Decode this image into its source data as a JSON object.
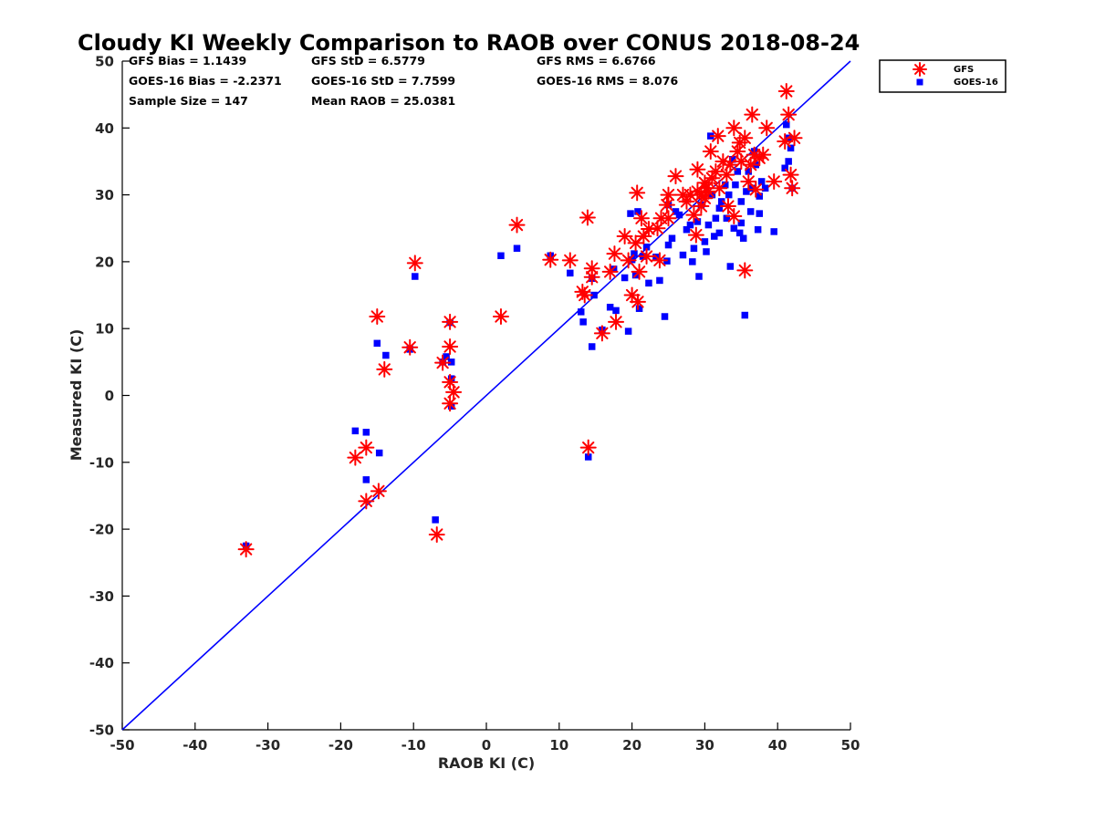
{
  "chart_data": {
    "type": "scatter",
    "title": "Cloudy KI Weekly Comparison to RAOB over CONUS 2018-08-24",
    "xlabel": "RAOB KI (C)",
    "ylabel": "Measured KI (C)",
    "xlim": [
      -50,
      50
    ],
    "ylim": [
      -50,
      50
    ],
    "xticks": [
      "-50",
      "-40",
      "-30",
      "-20",
      "-10",
      "0",
      "10",
      "20",
      "30",
      "40",
      "50"
    ],
    "yticks": [
      "-50",
      "-40",
      "-30",
      "-20",
      "-10",
      "0",
      "10",
      "20",
      "30",
      "40",
      "50"
    ],
    "grid": false,
    "legend_position": "outside top-right",
    "reference_line": {
      "from": [
        -50,
        -50
      ],
      "to": [
        50,
        50
      ],
      "color": "#0000ff"
    },
    "stats": [
      "GFS Bias = 1.1439",
      "GFS StD = 6.5779",
      "GFS RMS = 6.6766",
      "GOES-16 Bias = -2.2371",
      "GOES-16 StD = 7.7599",
      "GOES-16 RMS = 8.076",
      "Sample Size = 147",
      "Mean RAOB = 25.0381"
    ],
    "series": [
      {
        "name": "GFS",
        "marker": "asterisk",
        "color": "#ff0000",
        "points": [
          [
            -33,
            -23
          ],
          [
            -18,
            -9.3
          ],
          [
            -16.5,
            -7.8
          ],
          [
            -16.5,
            -15.8
          ],
          [
            -14.8,
            -14.3
          ],
          [
            -15,
            11.8
          ],
          [
            -14,
            3.9
          ],
          [
            -10.5,
            7.2
          ],
          [
            -9.8,
            19.8
          ],
          [
            -6.8,
            -20.8
          ],
          [
            -6,
            4.9
          ],
          [
            -5,
            11
          ],
          [
            -5,
            7.3
          ],
          [
            -5,
            2
          ],
          [
            -5,
            -1.2
          ],
          [
            -4.5,
            0.5
          ],
          [
            2,
            11.8
          ],
          [
            4.2,
            25.5
          ],
          [
            8.8,
            20.3
          ],
          [
            11.5,
            20.2
          ],
          [
            13.2,
            15.5
          ],
          [
            13.5,
            15
          ],
          [
            13.9,
            26.6
          ],
          [
            14,
            -7.8
          ],
          [
            14.5,
            19
          ],
          [
            14.5,
            17.7
          ],
          [
            15.9,
            9.3
          ],
          [
            17,
            18.5
          ],
          [
            17.6,
            21.2
          ],
          [
            17.8,
            11
          ],
          [
            19,
            23.8
          ],
          [
            19.5,
            20.2
          ],
          [
            20,
            15
          ],
          [
            20.5,
            22.8
          ],
          [
            20.7,
            30.3
          ],
          [
            20.8,
            14
          ],
          [
            21,
            18.5
          ],
          [
            21.3,
            26.5
          ],
          [
            21.6,
            23.8
          ],
          [
            22,
            20.8
          ],
          [
            22.3,
            24.9
          ],
          [
            23.5,
            25
          ],
          [
            23.8,
            20.2
          ],
          [
            24,
            26.5
          ],
          [
            24.8,
            28.5
          ],
          [
            25,
            30
          ],
          [
            25,
            26.5
          ],
          [
            26,
            32.8
          ],
          [
            27,
            30
          ],
          [
            27.5,
            29
          ],
          [
            28,
            30
          ],
          [
            28.5,
            27
          ],
          [
            28.8,
            24
          ],
          [
            29,
            33.8
          ],
          [
            29,
            30.5
          ],
          [
            29.5,
            30
          ],
          [
            29.5,
            28.3
          ],
          [
            30,
            31.8
          ],
          [
            30,
            29.5
          ],
          [
            30.2,
            31
          ],
          [
            30.5,
            30.5
          ],
          [
            30.8,
            36.5
          ],
          [
            31,
            32.5
          ],
          [
            31.5,
            33.5
          ],
          [
            31.8,
            38.8
          ],
          [
            32,
            31
          ],
          [
            32.5,
            35
          ],
          [
            33,
            33
          ],
          [
            33.2,
            28.3
          ],
          [
            33.5,
            34.5
          ],
          [
            34,
            40
          ],
          [
            34,
            26.8
          ],
          [
            34.5,
            36.5
          ],
          [
            34.8,
            37.8
          ],
          [
            35,
            35
          ],
          [
            35.5,
            38.5
          ],
          [
            35.5,
            18.7
          ],
          [
            36,
            32
          ],
          [
            36.3,
            34.5
          ],
          [
            36.5,
            42
          ],
          [
            36.8,
            36
          ],
          [
            37,
            30.8
          ],
          [
            37.5,
            35.5
          ],
          [
            38,
            36
          ],
          [
            38.5,
            40
          ],
          [
            39.5,
            32
          ],
          [
            41,
            38
          ],
          [
            41.2,
            45.5
          ],
          [
            41.5,
            42
          ],
          [
            41.8,
            33
          ],
          [
            42,
            31
          ],
          [
            42.3,
            38.5
          ]
        ]
      },
      {
        "name": "GOES-16",
        "marker": "square",
        "color": "#0000ff",
        "points": [
          [
            -33,
            -22.5
          ],
          [
            -18,
            -5.3
          ],
          [
            -16.5,
            -5.5
          ],
          [
            -16.5,
            -12.6
          ],
          [
            -15,
            7.8
          ],
          [
            -14.7,
            -8.6
          ],
          [
            -13.8,
            6
          ],
          [
            -10.5,
            6.9
          ],
          [
            -9.8,
            17.8
          ],
          [
            -7,
            -18.6
          ],
          [
            -6,
            5
          ],
          [
            -5.5,
            5.8
          ],
          [
            -5,
            10.9
          ],
          [
            -4.8,
            5
          ],
          [
            -4.8,
            2.5
          ],
          [
            -4.8,
            -1.6
          ],
          [
            2,
            20.9
          ],
          [
            4.2,
            22
          ],
          [
            8.8,
            20.9
          ],
          [
            11.5,
            18.3
          ],
          [
            13,
            12.5
          ],
          [
            13.3,
            11
          ],
          [
            14,
            -9.2
          ],
          [
            14.5,
            17.5
          ],
          [
            14.5,
            7.3
          ],
          [
            14.8,
            15
          ],
          [
            15.9,
            9.8
          ],
          [
            17,
            13.2
          ],
          [
            17.5,
            18.9
          ],
          [
            17.8,
            12.7
          ],
          [
            19,
            17.6
          ],
          [
            19.5,
            9.6
          ],
          [
            19.8,
            27.2
          ],
          [
            20,
            20.3
          ],
          [
            20.3,
            21.2
          ],
          [
            20.5,
            18
          ],
          [
            20.8,
            27.5
          ],
          [
            21,
            13
          ],
          [
            21.5,
            20.8
          ],
          [
            22,
            22.2
          ],
          [
            22.3,
            16.8
          ],
          [
            23.3,
            20.7
          ],
          [
            23.8,
            17.2
          ],
          [
            24.5,
            11.8
          ],
          [
            24.8,
            20.1
          ],
          [
            25,
            28.5
          ],
          [
            25,
            22.5
          ],
          [
            25.5,
            23.5
          ],
          [
            26,
            27.5
          ],
          [
            26.5,
            27
          ],
          [
            27,
            21
          ],
          [
            27.5,
            24.8
          ],
          [
            28,
            25.5
          ],
          [
            28.3,
            20
          ],
          [
            28.5,
            22
          ],
          [
            29,
            26
          ],
          [
            29.2,
            17.8
          ],
          [
            29.5,
            28.5
          ],
          [
            30,
            23
          ],
          [
            30.2,
            21.5
          ],
          [
            30.5,
            25.5
          ],
          [
            30.8,
            38.8
          ],
          [
            31,
            30
          ],
          [
            31.3,
            23.8
          ],
          [
            31.5,
            26.5
          ],
          [
            32,
            24.3
          ],
          [
            32,
            28
          ],
          [
            32.3,
            29
          ],
          [
            32.8,
            31.5
          ],
          [
            33,
            26.5
          ],
          [
            33.3,
            30
          ],
          [
            33.5,
            19.3
          ],
          [
            33.8,
            35.3
          ],
          [
            34,
            25
          ],
          [
            34.2,
            31.5
          ],
          [
            34.5,
            33.5
          ],
          [
            34.8,
            24.3
          ],
          [
            35,
            25.8
          ],
          [
            35,
            29
          ],
          [
            35.3,
            23.5
          ],
          [
            35.5,
            12
          ],
          [
            35.7,
            30.5
          ],
          [
            36,
            33.5
          ],
          [
            36.3,
            27.5
          ],
          [
            36.5,
            31
          ],
          [
            36.8,
            36.5
          ],
          [
            37,
            34.5
          ],
          [
            37.3,
            24.8
          ],
          [
            37.5,
            29.8
          ],
          [
            37.5,
            27.2
          ],
          [
            37.8,
            32
          ],
          [
            38.3,
            31
          ],
          [
            39.5,
            24.5
          ],
          [
            41,
            34
          ],
          [
            41.2,
            40.5
          ],
          [
            41.5,
            38.5
          ],
          [
            41.5,
            35
          ],
          [
            41.8,
            37
          ],
          [
            42,
            31
          ]
        ]
      }
    ]
  }
}
